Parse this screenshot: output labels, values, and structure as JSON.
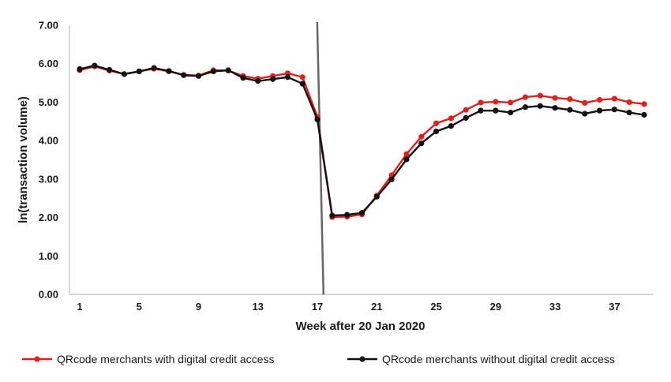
{
  "chart_data": {
    "type": "line",
    "title": "",
    "xlabel": "Week after 20 Jan 2020",
    "ylabel": "ln(transaction volume)",
    "ylim": [
      0,
      7
    ],
    "xlim": [
      1,
      39
    ],
    "y_ticks": [
      "0.00",
      "1.00",
      "2.00",
      "3.00",
      "4.00",
      "5.00",
      "6.00",
      "7.00"
    ],
    "x_ticks": [
      1,
      5,
      9,
      13,
      17,
      21,
      25,
      29,
      33,
      37
    ],
    "grid": false,
    "legend_position": "bottom",
    "vertical_marker_x": 17.2,
    "x": [
      1,
      2,
      3,
      4,
      5,
      6,
      7,
      8,
      9,
      10,
      11,
      12,
      13,
      14,
      15,
      16,
      17,
      18,
      19,
      20,
      21,
      22,
      23,
      24,
      25,
      26,
      27,
      28,
      29,
      30,
      31,
      32,
      33,
      34,
      35,
      36,
      37,
      38,
      39
    ],
    "series": [
      {
        "name": "QRcode merchants with digital credit access",
        "color": "#e0201b",
        "values": [
          5.83,
          5.93,
          5.82,
          5.73,
          5.8,
          5.87,
          5.8,
          5.71,
          5.69,
          5.83,
          5.82,
          5.68,
          5.61,
          5.68,
          5.75,
          5.65,
          4.62,
          2.01,
          2.02,
          2.08,
          2.57,
          3.1,
          3.65,
          4.1,
          4.45,
          4.58,
          4.8,
          4.99,
          5.01,
          4.99,
          5.13,
          5.17,
          5.11,
          5.08,
          4.98,
          5.06,
          5.09,
          5.0,
          4.95
        ]
      },
      {
        "name": "QRcode merchants without digital credit access",
        "color": "#111111",
        "values": [
          5.86,
          5.95,
          5.84,
          5.73,
          5.8,
          5.89,
          5.81,
          5.7,
          5.68,
          5.8,
          5.83,
          5.63,
          5.55,
          5.6,
          5.65,
          5.48,
          4.55,
          2.05,
          2.07,
          2.12,
          2.54,
          2.99,
          3.51,
          3.93,
          4.24,
          4.38,
          4.59,
          4.78,
          4.78,
          4.73,
          4.87,
          4.9,
          4.85,
          4.8,
          4.7,
          4.78,
          4.81,
          4.73,
          4.67
        ]
      }
    ]
  }
}
